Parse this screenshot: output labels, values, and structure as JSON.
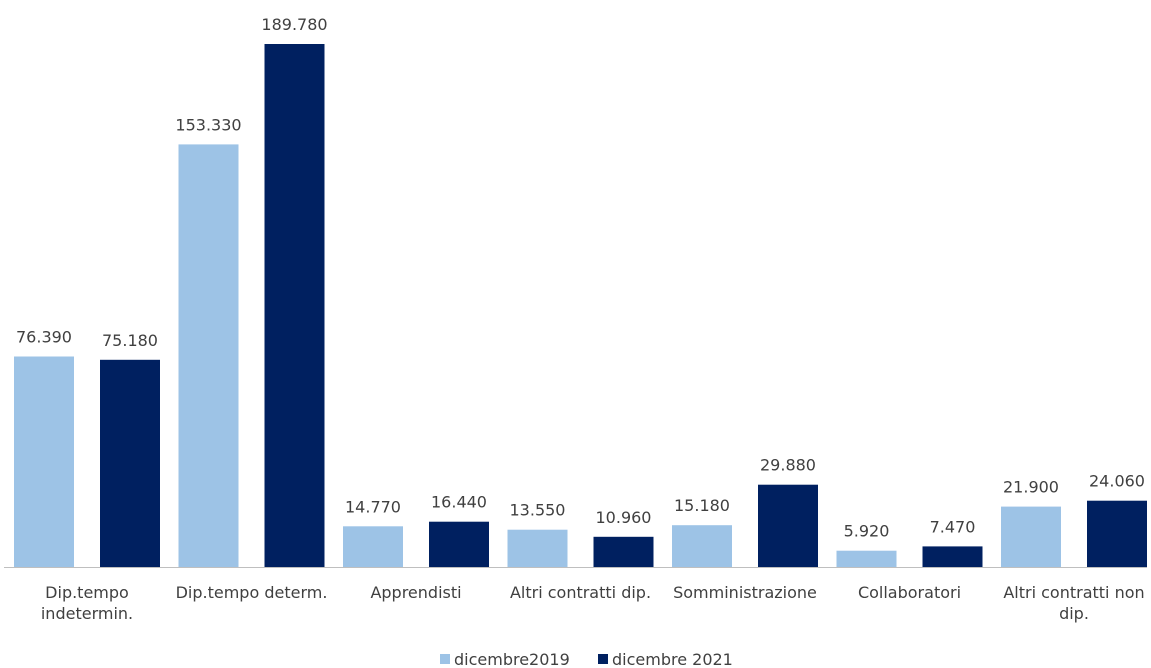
{
  "chart_data": {
    "type": "bar",
    "title": "",
    "xlabel": "",
    "ylabel": "",
    "categories": [
      [
        "Dip.tempo",
        "indetermin."
      ],
      [
        "Dip.tempo determ."
      ],
      [
        "Apprendisti"
      ],
      [
        "Altri contratti dip."
      ],
      [
        "Somministrazione"
      ],
      [
        "Collaboratori"
      ],
      [
        "Altri contratti non",
        "dip."
      ]
    ],
    "series": [
      {
        "name": "dicembre2019",
        "color": "#9dc3e6",
        "values": [
          76390,
          153330,
          14770,
          13550,
          15180,
          5920,
          21900
        ],
        "labels": [
          "76.390",
          "153.330",
          "14.770",
          "13.550",
          "15.180",
          "5.920",
          "21.900"
        ]
      },
      {
        "name": "dicembre 2021",
        "color": "#002060",
        "values": [
          75180,
          189780,
          16440,
          10960,
          29880,
          7470,
          24060
        ],
        "labels": [
          "75.180",
          "189.780",
          "16.440",
          "10.960",
          "29.880",
          "7.470",
          "24.060"
        ]
      }
    ],
    "ylim": [
      0,
      190000
    ],
    "grid": false,
    "legend": "bottom-center"
  }
}
